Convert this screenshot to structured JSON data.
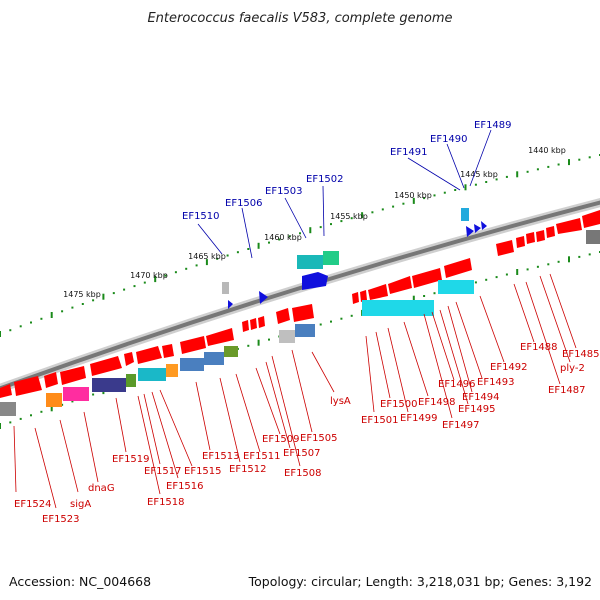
{
  "title": "Enterococcus faecalis V583, complete genome",
  "accession": "Accession: NC_004668",
  "topology": "Topology: circular; Length: 3,218,031 bp; Genes: 3,192",
  "kbp_labels": [
    "1475 kbp",
    "1470 kbp",
    "1465 kbp",
    "1460 kbp",
    "1455 kbp",
    "1450 kbp",
    "1445 kbp",
    "1440 kbp"
  ],
  "colors": {
    "forward_gene": "#ff0000",
    "reverse_gene": "#ff0000",
    "blue_gene": "#1010dd",
    "tick": "#1a8a1a",
    "label_red": "#cc0000",
    "label_blue": "#0000aa",
    "backbone": "#888888"
  },
  "blue_labels": [
    "EF1510",
    "EF1506",
    "EF1503",
    "EF1502",
    "EF1491",
    "EF1490",
    "EF1489"
  ],
  "red_labels": [
    "EF1524",
    "EF1523",
    "sigA",
    "dnaG",
    "EF1519",
    "EF1518",
    "EF1517",
    "EF1516",
    "EF1515",
    "EF1513",
    "EF1512",
    "EF1511",
    "EF1509",
    "EF1507",
    "EF1508",
    "EF1505",
    "lysA",
    "EF1501",
    "EF1500",
    "EF1499",
    "EF1498",
    "EF1497",
    "EF1496",
    "EF1495",
    "EF1494",
    "EF1493",
    "EF1492",
    "EF1488",
    "EF1487",
    "ply-2",
    "EF1485"
  ]
}
